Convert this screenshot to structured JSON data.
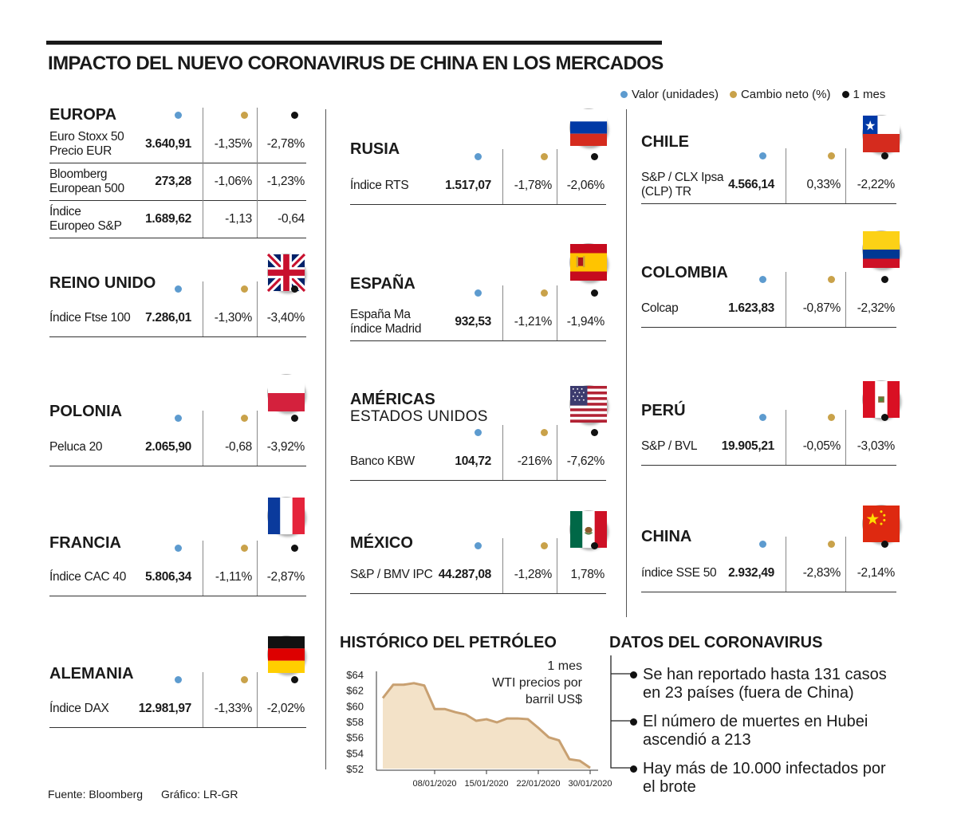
{
  "title": "IMPACTO DEL NUEVO CORONAVIRUS DE CHINA EN LOS MERCADOS",
  "legend": [
    {
      "label": "Valor (unidades)",
      "color": "#5d9bcf"
    },
    {
      "label": "Cambio neto (%)",
      "color": "#c9a24a"
    },
    {
      "label": "1 mes",
      "color": "#111111"
    }
  ],
  "regions": {
    "europa": {
      "title": "EUROPA",
      "rows": [
        {
          "name": [
            "Euro Stoxx 50",
            "Precio EUR"
          ],
          "value": "3.640,91",
          "change": "-1,35%",
          "month": "-2,78%"
        },
        {
          "name": [
            "Bloomberg",
            "European 500"
          ],
          "value": "273,28",
          "change": "-1,06%",
          "month": "-1,23%"
        },
        {
          "name": [
            "Índice",
            "Europeo S&P"
          ],
          "value": "1.689,62",
          "change": "-1,13",
          "month": "-0,64"
        }
      ]
    },
    "reino_unido": {
      "title": "REINO UNIDO",
      "flag": "uk-flag-icon",
      "rows": [
        {
          "name": [
            "Índice Ftse 100"
          ],
          "value": "7.286,01",
          "change": "-1,30%",
          "month": "-3,40%"
        }
      ]
    },
    "polonia": {
      "title": "POLONIA",
      "flag": "poland-flag-icon",
      "rows": [
        {
          "name": [
            "Peluca 20"
          ],
          "value": "2.065,90",
          "change": "-0,68",
          "month": "-3,92%"
        }
      ]
    },
    "francia": {
      "title": "FRANCIA",
      "flag": "france-flag-icon",
      "rows": [
        {
          "name": [
            "Índice CAC 40"
          ],
          "value": "5.806,34",
          "change": "-1,11%",
          "month": "-2,87%"
        }
      ]
    },
    "alemania": {
      "title": "ALEMANIA",
      "flag": "germany-flag-icon",
      "rows": [
        {
          "name": [
            "Índice DAX"
          ],
          "value": "12.981,97",
          "change": "-1,33%",
          "month": "-2,02%"
        }
      ]
    },
    "rusia": {
      "title": "RUSIA",
      "flag": "russia-flag-icon",
      "rows": [
        {
          "name": [
            "Índice RTS"
          ],
          "value": "1.517,07",
          "change": "-1,78%",
          "month": "-2,06%"
        }
      ]
    },
    "espana": {
      "title": "ESPAÑA",
      "flag": "spain-flag-icon",
      "rows": [
        {
          "name": [
            "España Ma",
            "índice Madrid"
          ],
          "value": "932,53",
          "change": "-1,21%",
          "month": "-1,94%"
        }
      ]
    },
    "americas": {
      "title": "AMÉRICAS",
      "subtitle": "ESTADOS UNIDOS",
      "flag": "usa-flag-icon",
      "rows": [
        {
          "name": [
            "Banco KBW"
          ],
          "value": "104,72",
          "change": "-216%",
          "month": "-7,62%"
        }
      ]
    },
    "mexico": {
      "title": "MÉXICO",
      "flag": "mexico-flag-icon",
      "rows": [
        {
          "name": [
            "S&P / BMV IPC"
          ],
          "value": "44.287,08",
          "change": "-1,28%",
          "month": "1,78%"
        }
      ]
    },
    "chile": {
      "title": "CHILE",
      "flag": "chile-flag-icon",
      "rows": [
        {
          "name": [
            "S&P / CLX Ipsa",
            "(CLP) TR"
          ],
          "value": "4.566,14",
          "change": "0,33%",
          "month": "-2,22%"
        }
      ]
    },
    "colombia": {
      "title": "COLOMBIA",
      "flag": "colombia-flag-icon",
      "rows": [
        {
          "name": [
            "Colcap"
          ],
          "value": "1.623,83",
          "change": "-0,87%",
          "month": "-2,32%"
        }
      ]
    },
    "peru": {
      "title": "PERÚ",
      "flag": "peru-flag-icon",
      "rows": [
        {
          "name": [
            "S&P / BVL"
          ],
          "value": "19.905,21",
          "change": "-0,05%",
          "month": "-3,03%"
        }
      ]
    },
    "china": {
      "title": "CHINA",
      "flag": "china-flag-icon",
      "rows": [
        {
          "name": [
            "índice SSE 50"
          ],
          "value": "2.932,49",
          "change": "-2,83%",
          "month": "-2,14%"
        }
      ]
    }
  },
  "chart_data": {
    "type": "area",
    "title": "HISTÓRICO DEL PETRÓLEO",
    "annotation": [
      "1 mes",
      "WTI precios por",
      "barril US$"
    ],
    "ylim": [
      52,
      64
    ],
    "yticks": [
      "$64",
      "$62",
      "$60",
      "$58",
      "$56",
      "$54",
      "$52"
    ],
    "ytick_values": [
      64,
      62,
      60,
      58,
      56,
      54,
      52
    ],
    "xtick_labels": [
      "08/01/2020",
      "15/01/2020",
      "22/01/2020",
      "30/01/2020"
    ],
    "xtick_index": [
      5,
      10,
      15,
      20
    ],
    "x_count": 21,
    "values": [
      61.0,
      62.7,
      62.7,
      62.9,
      62.6,
      59.6,
      59.6,
      59.2,
      58.9,
      58.1,
      58.3,
      57.9,
      58.4,
      58.4,
      58.3,
      57.2,
      56.0,
      55.6,
      53.2,
      53.0,
      52.1
    ],
    "fill_color": "#f3e2c8",
    "line_color": "#c8a071"
  },
  "datos": {
    "title": "DATOS DEL CORONAVIRUS",
    "items": [
      [
        "Se han reportado hasta 131 casos",
        "en 23 países (fuera de China)"
      ],
      [
        "El número de muertes en Hubei",
        "ascendió a 213"
      ],
      [
        "Hay más de 10.000  infectados por",
        "el brote"
      ]
    ]
  },
  "footer": {
    "source": "Fuente: Bloomberg",
    "credit": "Gráfico: LR-GR"
  }
}
